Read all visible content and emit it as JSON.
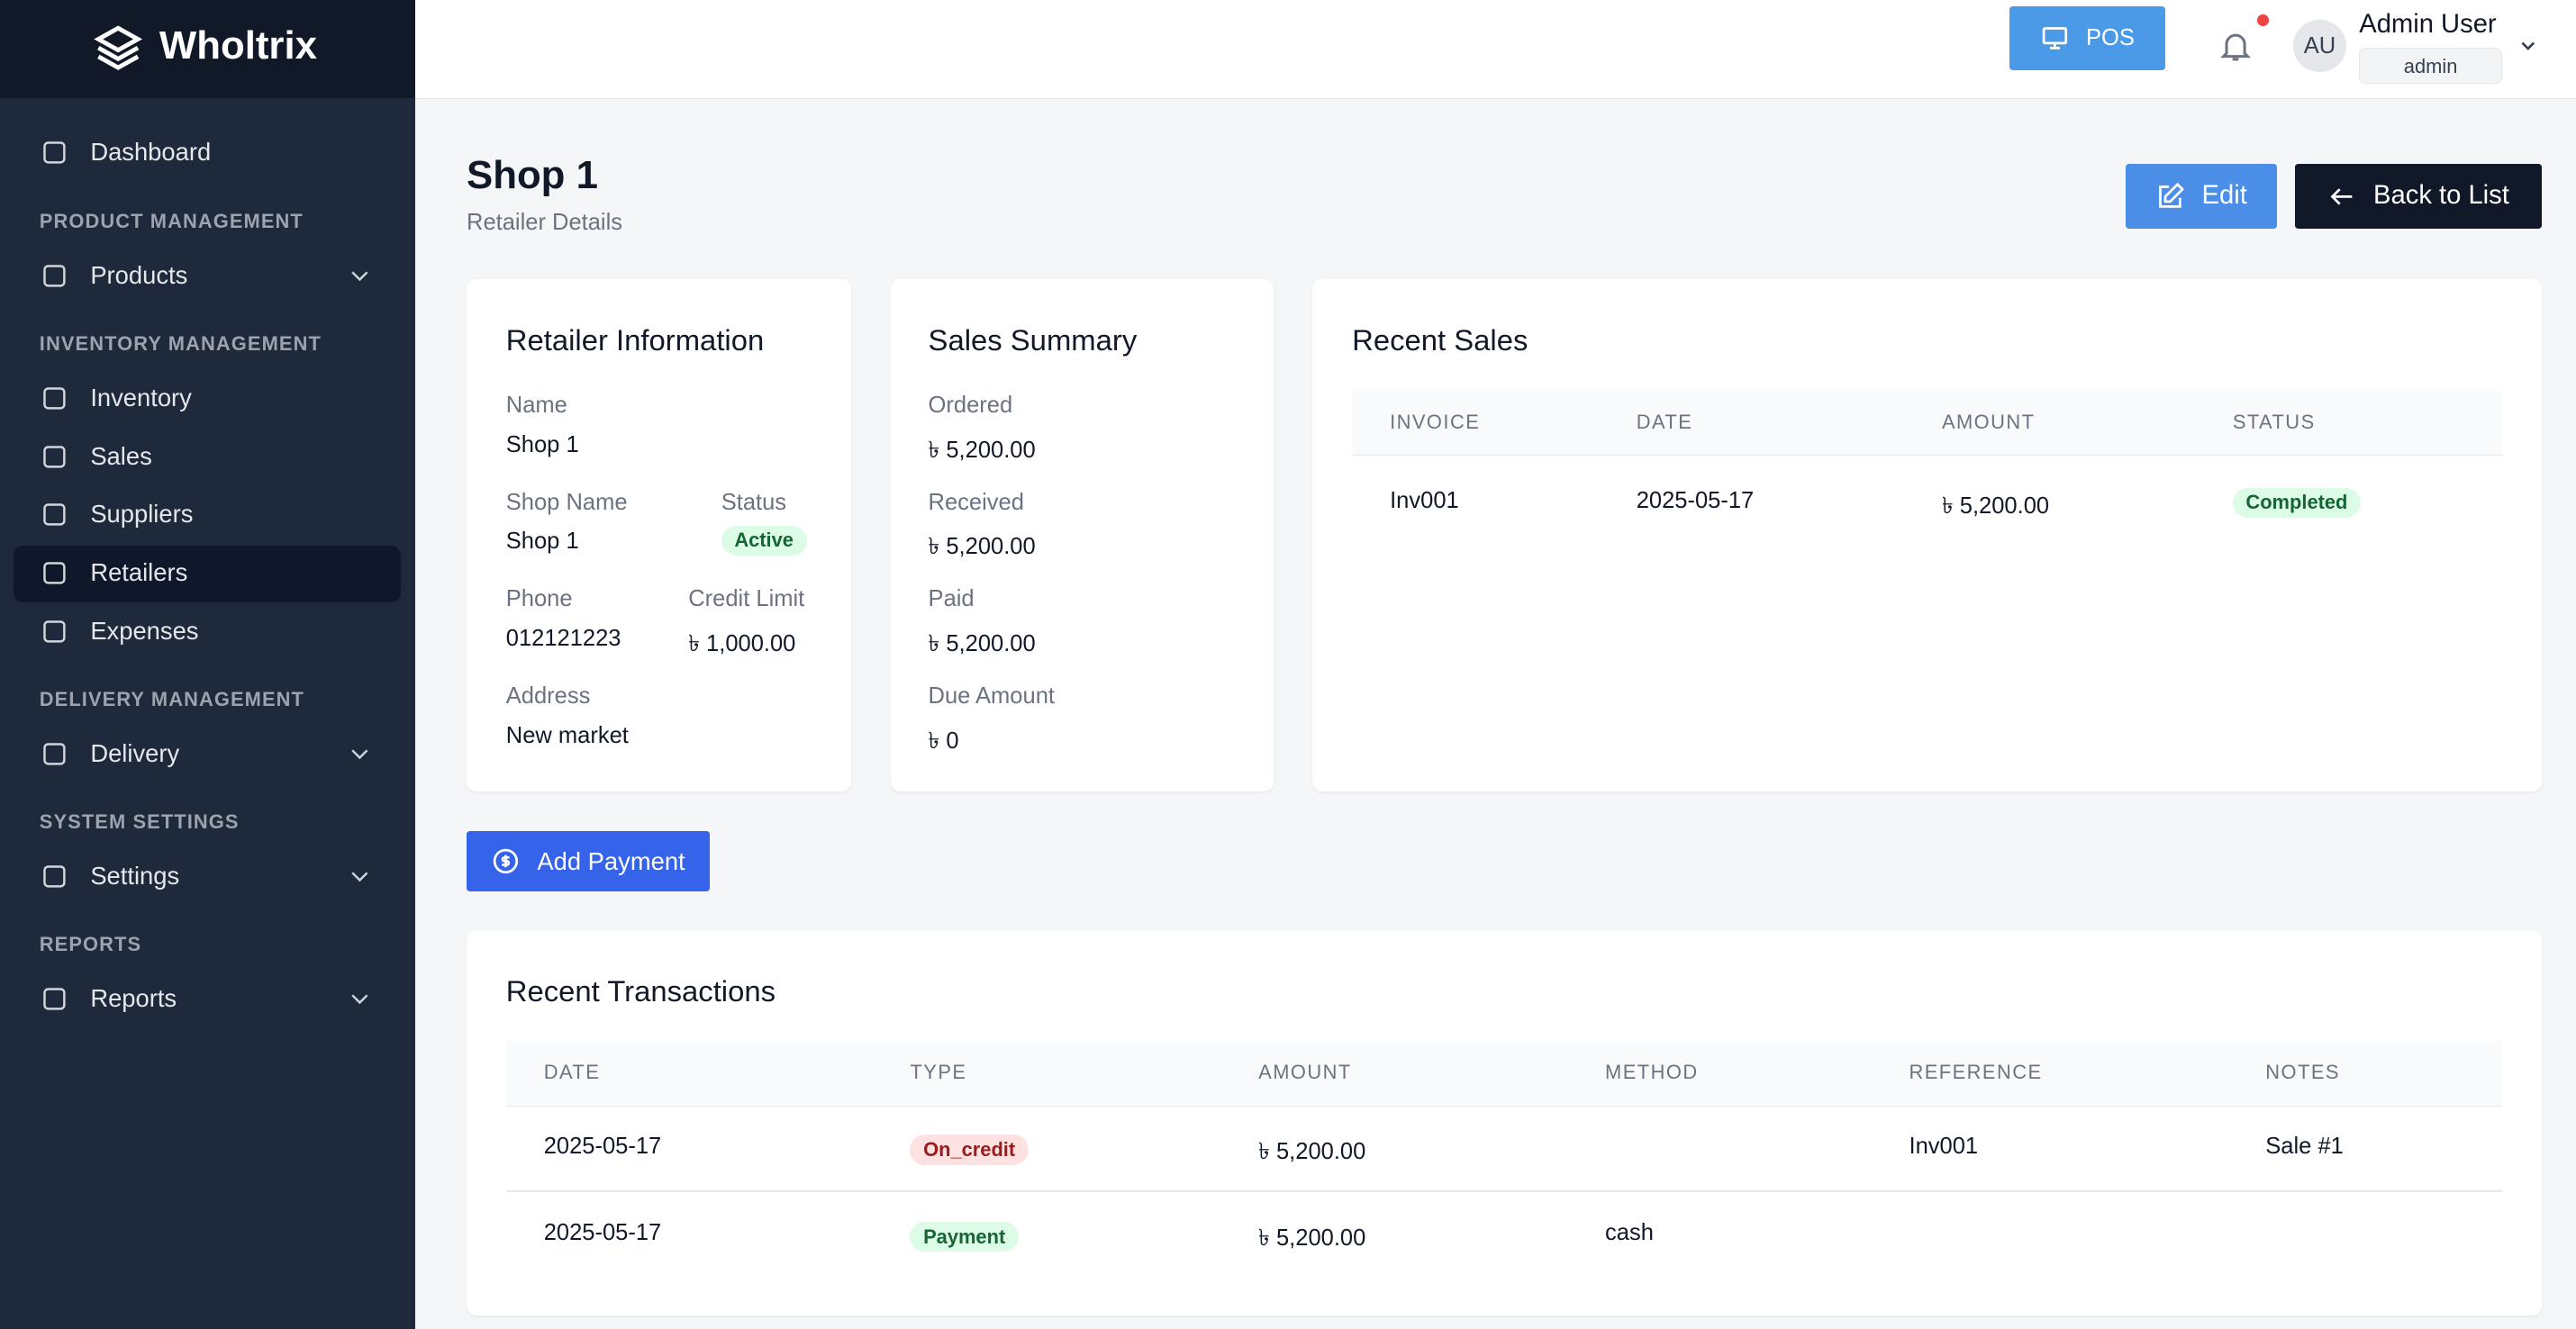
{
  "sidebar": {
    "brand": "Wholtrix",
    "dashboard": "Dashboard",
    "sections": [
      {
        "heading": "PRODUCT MANAGEMENT",
        "items": [
          "Products"
        ]
      },
      {
        "heading": "INVENTORY MANAGEMENT",
        "items": [
          "Inventory",
          "Sales",
          "Suppliers",
          "Retailers",
          "Expenses"
        ]
      },
      {
        "heading": "DELIVERY MANAGEMENT",
        "items": [
          "Delivery"
        ]
      },
      {
        "heading": "SYSTEM SETTINGS",
        "items": [
          "Settings"
        ]
      },
      {
        "heading": "REPORTS",
        "items": [
          "Reports"
        ]
      }
    ]
  },
  "header": {
    "pos": "POS",
    "avatar": "AU",
    "user_name": "Admin User",
    "role": "admin"
  },
  "page": {
    "title": "Shop 1",
    "subtitle": "Retailer Details",
    "edit": "Edit",
    "back": "Back to List"
  },
  "retailer_info": {
    "title": "Retailer Information",
    "fields": [
      {
        "label": "Name",
        "value": "Shop 1"
      },
      {
        "label": "Shop Name",
        "value": "Shop 1"
      },
      {
        "label": "Status",
        "value": "Active"
      },
      {
        "label": "Phone",
        "value": "012121223"
      },
      {
        "label": "Credit Limit",
        "value": "৳ 1,000.00"
      },
      {
        "label": "Address",
        "value": "New market"
      }
    ]
  },
  "sales_summary": {
    "title": "Sales Summary",
    "fields": [
      {
        "label": "Ordered",
        "value": "৳ 5,200.00"
      },
      {
        "label": "Received",
        "value": "৳ 5,200.00"
      },
      {
        "label": "Paid",
        "value": "৳ 5,200.00"
      },
      {
        "label": "Due Amount",
        "value": "৳ 0"
      }
    ]
  },
  "recent_sales": {
    "title": "Recent Sales",
    "headers": [
      "INVOICE",
      "DATE",
      "AMOUNT",
      "STATUS"
    ],
    "rows": [
      [
        "Inv001",
        "2025-05-17",
        "৳ 5,200.00",
        "Completed"
      ]
    ]
  },
  "add_payment": "Add Payment",
  "transactions": {
    "title": "Recent Transactions",
    "headers": [
      "DATE",
      "TYPE",
      "AMOUNT",
      "METHOD",
      "REFERENCE",
      "NOTES"
    ],
    "rows": [
      {
        "date": "2025-05-17",
        "type": "On_credit",
        "amount": "৳ 5,200.00",
        "reference": "Inv001",
        "notes": "Sale #1"
      },
      {
        "date": "2025-05-17",
        "type": "Payment",
        "amount": "৳ 5,200.00",
        "method": "cash"
      }
    ]
  }
}
